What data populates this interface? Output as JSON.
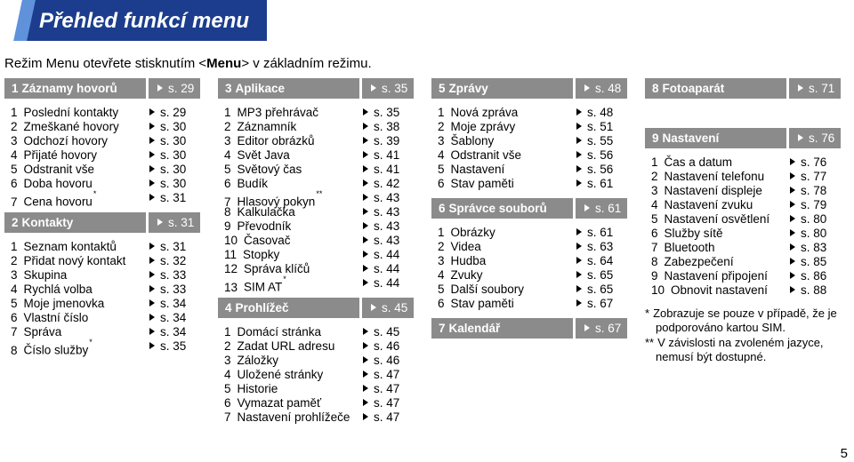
{
  "header": {
    "title": "Přehled funkcí menu",
    "intro": {
      "before": "Režim Menu otevřete stisknutím <",
      "key": "Menu",
      "after": "> v základním režimu."
    }
  },
  "colors": {
    "title_bar": "#1c3d8d",
    "title_stripe": "#5f92da",
    "section_header": "#8b8b8b"
  },
  "columns": [
    {
      "sections": [
        {
          "num": "1",
          "label": "Záznamy hovorů",
          "page": "s. 29",
          "items": [
            {
              "num": "1",
              "label": "Poslední kontakty",
              "page": "s. 29"
            },
            {
              "num": "2",
              "label": "Zmeškané hovory",
              "page": "s. 30"
            },
            {
              "num": "3",
              "label": "Odchozí hovory",
              "page": "s. 30"
            },
            {
              "num": "4",
              "label": "Přijaté hovory",
              "page": "s. 30"
            },
            {
              "num": "5",
              "label": "Odstranit vše",
              "page": "s. 30"
            },
            {
              "num": "6",
              "label": "Doba hovoru",
              "page": "s. 30"
            },
            {
              "num": "7",
              "label": "Cena hovoru",
              "mark": "*",
              "page": "s. 31"
            }
          ]
        },
        {
          "num": "2",
          "label": "Kontakty",
          "page": "s. 31",
          "items": [
            {
              "num": "1",
              "label": "Seznam kontaktů",
              "page": "s. 31"
            },
            {
              "num": "2",
              "label": "Přidat nový kontakt",
              "page": "s. 32"
            },
            {
              "num": "3",
              "label": "Skupina",
              "page": "s. 33"
            },
            {
              "num": "4",
              "label": "Rychlá volba",
              "page": "s. 33"
            },
            {
              "num": "5",
              "label": "Moje jmenovka",
              "page": "s. 34"
            },
            {
              "num": "6",
              "label": "Vlastní číslo",
              "page": "s. 34"
            },
            {
              "num": "7",
              "label": "Správa",
              "page": "s. 34"
            },
            {
              "num": "8",
              "label": "Číslo služby",
              "mark": "*",
              "page": "s. 35"
            }
          ]
        }
      ]
    },
    {
      "sections": [
        {
          "num": "3",
          "label": "Aplikace",
          "page": "s. 35",
          "items": [
            {
              "num": "1",
              "label": "MP3 přehrávač",
              "page": "s. 35"
            },
            {
              "num": "2",
              "label": "Záznamník",
              "page": "s. 38"
            },
            {
              "num": "3",
              "label": "Editor obrázků",
              "page": "s. 39"
            },
            {
              "num": "4",
              "label": "Svět Java",
              "page": "s. 41"
            },
            {
              "num": "5",
              "label": "Světový čas",
              "page": "s. 41"
            },
            {
              "num": "6",
              "label": "Budík",
              "page": "s. 42"
            },
            {
              "num": "7",
              "label": "Hlasový pokyn",
              "mark": "**",
              "page": "s. 43"
            },
            {
              "num": "8",
              "label": "Kalkulačka",
              "page": "s. 43"
            },
            {
              "num": "9",
              "label": "Převodník",
              "page": "s. 43"
            },
            {
              "num": "10",
              "label": "Časovač",
              "page": "s. 43"
            },
            {
              "num": "11",
              "label": "Stopky",
              "page": "s. 44"
            },
            {
              "num": "12",
              "label": "Správa klíčů",
              "page": "s. 44"
            },
            {
              "num": "13",
              "label": "SIM AT",
              "mark": "*",
              "page": "s. 44"
            }
          ]
        },
        {
          "num": "4",
          "label": "Prohlížeč",
          "page": "s. 45",
          "items": [
            {
              "num": "1",
              "label": "Domácí stránka",
              "page": "s. 45"
            },
            {
              "num": "2",
              "label": "Zadat URL adresu",
              "page": "s. 46"
            },
            {
              "num": "3",
              "label": "Záložky",
              "page": "s. 46"
            },
            {
              "num": "4",
              "label": "Uložené stránky",
              "page": "s. 47"
            },
            {
              "num": "5",
              "label": "Historie",
              "page": "s. 47"
            },
            {
              "num": "6",
              "label": "Vymazat paměť",
              "page": "s. 47"
            },
            {
              "num": "7",
              "label": "Nastavení prohlížeče",
              "page": "s. 47"
            }
          ]
        }
      ]
    },
    {
      "sections": [
        {
          "num": "5",
          "label": "Zprávy",
          "page": "s. 48",
          "items": [
            {
              "num": "1",
              "label": "Nová zpráva",
              "page": "s. 48"
            },
            {
              "num": "2",
              "label": "Moje zprávy",
              "page": "s. 51"
            },
            {
              "num": "3",
              "label": "Šablony",
              "page": "s. 55"
            },
            {
              "num": "4",
              "label": "Odstranit vše",
              "page": "s. 56"
            },
            {
              "num": "5",
              "label": "Nastavení",
              "page": "s. 56"
            },
            {
              "num": "6",
              "label": "Stav paměti",
              "page": "s. 61"
            }
          ]
        },
        {
          "num": "6",
          "label": "Správce souborů",
          "page": "s. 61",
          "items": [
            {
              "num": "1",
              "label": "Obrázky",
              "page": "s. 61"
            },
            {
              "num": "2",
              "label": "Videa",
              "page": "s. 63"
            },
            {
              "num": "3",
              "label": "Hudba",
              "page": "s. 64"
            },
            {
              "num": "4",
              "label": "Zvuky",
              "page": "s. 65"
            },
            {
              "num": "5",
              "label": "Další soubory",
              "page": "s. 65"
            },
            {
              "num": "6",
              "label": "Stav paměti",
              "page": "s. 67"
            }
          ]
        },
        {
          "num": "7",
          "label": "Kalendář",
          "page": "s. 67",
          "items": []
        }
      ]
    },
    {
      "sections": [
        {
          "num": "8",
          "label": "Fotoaparát",
          "page": "s. 71",
          "items": []
        },
        {
          "num": "9",
          "label": "Nastavení",
          "page": "s. 76",
          "items": [
            {
              "num": "1",
              "label": "Čas a datum",
              "page": "s. 76"
            },
            {
              "num": "2",
              "label": "Nastavení telefonu",
              "page": "s. 77"
            },
            {
              "num": "3",
              "label": "Nastavení displeje",
              "page": "s. 78"
            },
            {
              "num": "4",
              "label": "Nastavení zvuku",
              "page": "s. 79"
            },
            {
              "num": "5",
              "label": "Nastavení osvětlení",
              "page": "s. 80"
            },
            {
              "num": "6",
              "label": "Služby sítě",
              "page": "s. 80"
            },
            {
              "num": "7",
              "label": "Bluetooth",
              "page": "s. 83"
            },
            {
              "num": "8",
              "label": "Zabezpečení",
              "page": "s. 85"
            },
            {
              "num": "9",
              "label": "Nastavení připojení",
              "page": "s. 86"
            },
            {
              "num": "10",
              "label": "Obnovit nastavení",
              "page": "s. 88"
            }
          ]
        }
      ],
      "footnotes": [
        {
          "mark": "*",
          "lines": [
            "Zobrazuje se pouze v případě, že je",
            "podporováno kartou SIM."
          ]
        },
        {
          "mark": "**",
          "lines": [
            "V závislosti na zvoleném jazyce,",
            "nemusí být dostupné."
          ]
        }
      ]
    }
  ],
  "page_number": "5"
}
